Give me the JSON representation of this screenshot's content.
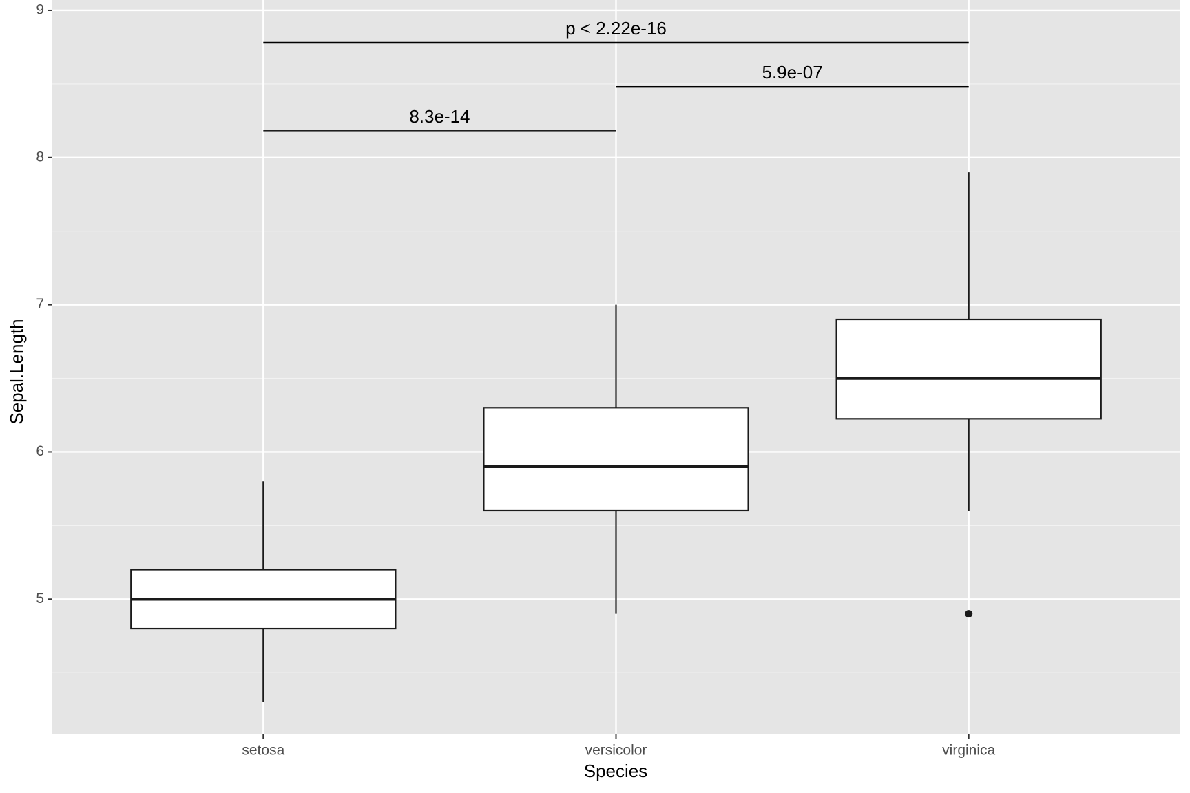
{
  "chart_data": {
    "type": "box",
    "x_label": "Species",
    "y_label": "Sepal.Length",
    "categories": [
      "setosa",
      "versicolor",
      "virginica"
    ],
    "boxes": [
      {
        "min": 4.3,
        "q1": 4.8,
        "median": 5.0,
        "q3": 5.2,
        "max": 5.8,
        "outliers": []
      },
      {
        "min": 4.9,
        "q1": 5.6,
        "median": 5.9,
        "q3": 6.3,
        "max": 7.0,
        "outliers": []
      },
      {
        "min": 5.6,
        "q1": 6.225,
        "median": 6.5,
        "q3": 6.9,
        "max": 7.9,
        "outliers": [
          4.9
        ]
      }
    ],
    "ylim": [
      4.08,
      9.07
    ],
    "yticks": [
      5,
      6,
      7,
      8,
      9
    ],
    "y_minor_gridlines": [
      4.5,
      5.5,
      6.5,
      7.5,
      8.5
    ],
    "grid": true,
    "panel_color": "#e5e5e5",
    "box_fill": "#ffffff",
    "line_color": "#1a1a1a",
    "comparisons": [
      {
        "from": "setosa",
        "to": "versicolor",
        "y": 8.18,
        "label": "8.3e-14"
      },
      {
        "from": "versicolor",
        "to": "virginica",
        "y": 8.48,
        "label": "5.9e-07"
      },
      {
        "from": "setosa",
        "to": "virginica",
        "y": 8.78,
        "label": "p < 2.22e-16"
      }
    ]
  }
}
